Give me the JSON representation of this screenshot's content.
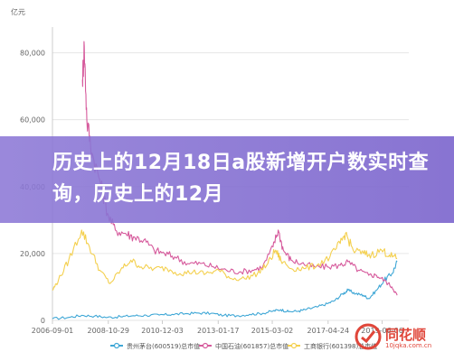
{
  "chart_data": {
    "type": "line",
    "y_unit": "亿元",
    "ylim": [
      0,
      85000
    ],
    "y_ticks": [
      0,
      20000,
      40000,
      60000,
      80000
    ],
    "y_tick_labels": [
      "0",
      "20,000",
      "40,000",
      "60,000",
      "80,000"
    ],
    "x_ticks": [
      2006.67,
      2008.83,
      2010.92,
      2013.08,
      2015.17,
      2017.33,
      2019.42
    ],
    "x_tick_labels": [
      "2006-09-01",
      "2008-10-29",
      "2010-12-03",
      "2013-01-17",
      "2015-03-02",
      "2017-04-24",
      "2019-06-06"
    ],
    "xlim": [
      2006.67,
      2020.1
    ],
    "grid": "horizontal",
    "legend_position": "bottom",
    "series": [
      {
        "name": "贵州茅台(600519)总市值",
        "color": "#3fa7d6",
        "points": [
          [
            2006.67,
            500
          ],
          [
            2007.3,
            900
          ],
          [
            2007.8,
            1500
          ],
          [
            2008.3,
            1300
          ],
          [
            2008.8,
            900
          ],
          [
            2009.3,
            1100
          ],
          [
            2009.8,
            1400
          ],
          [
            2010.3,
            1500
          ],
          [
            2010.8,
            1600
          ],
          [
            2011.3,
            1800
          ],
          [
            2011.8,
            2000
          ],
          [
            2012.3,
            2200
          ],
          [
            2012.8,
            2100
          ],
          [
            2013.3,
            1500
          ],
          [
            2013.8,
            1400
          ],
          [
            2014.3,
            1800
          ],
          [
            2014.8,
            2100
          ],
          [
            2015.2,
            2800
          ],
          [
            2015.5,
            3200
          ],
          [
            2015.8,
            2600
          ],
          [
            2016.2,
            2800
          ],
          [
            2016.5,
            3300
          ],
          [
            2016.9,
            4000
          ],
          [
            2017.3,
            5000
          ],
          [
            2017.6,
            6000
          ],
          [
            2017.9,
            8000
          ],
          [
            2018.1,
            9000
          ],
          [
            2018.4,
            8000
          ],
          [
            2018.7,
            7500
          ],
          [
            2018.9,
            6500
          ],
          [
            2019.2,
            9000
          ],
          [
            2019.5,
            12000
          ],
          [
            2019.8,
            14000
          ],
          [
            2020.0,
            17500
          ]
        ]
      },
      {
        "name": "中国石油(601857)总市值",
        "color": "#d65a9c",
        "points": [
          [
            2007.83,
            72000
          ],
          [
            2007.9,
            82000
          ],
          [
            2008.0,
            60000
          ],
          [
            2008.2,
            50000
          ],
          [
            2008.5,
            42000
          ],
          [
            2008.8,
            32000
          ],
          [
            2009.1,
            27000
          ],
          [
            2009.5,
            26000
          ],
          [
            2009.8,
            25000
          ],
          [
            2010.2,
            24000
          ],
          [
            2010.6,
            21000
          ],
          [
            2011.0,
            20000
          ],
          [
            2011.4,
            19000
          ],
          [
            2011.9,
            17000
          ],
          [
            2012.4,
            17000
          ],
          [
            2012.9,
            16000
          ],
          [
            2013.4,
            15000
          ],
          [
            2013.9,
            14500
          ],
          [
            2014.4,
            15000
          ],
          [
            2014.8,
            16000
          ],
          [
            2015.2,
            22000
          ],
          [
            2015.4,
            27000
          ],
          [
            2015.6,
            21000
          ],
          [
            2015.9,
            18000
          ],
          [
            2016.3,
            17000
          ],
          [
            2016.8,
            16000
          ],
          [
            2017.3,
            16000
          ],
          [
            2017.8,
            16500
          ],
          [
            2018.1,
            17500
          ],
          [
            2018.5,
            15000
          ],
          [
            2018.9,
            13500
          ],
          [
            2019.2,
            13500
          ],
          [
            2019.5,
            12000
          ],
          [
            2019.8,
            10000
          ],
          [
            2020.0,
            7500
          ]
        ]
      },
      {
        "name": "工商银行(601398)总市值",
        "color": "#f4d04f",
        "points": [
          [
            2006.67,
            9000
          ],
          [
            2006.9,
            12000
          ],
          [
            2007.3,
            18000
          ],
          [
            2007.8,
            27000
          ],
          [
            2008.1,
            22000
          ],
          [
            2008.5,
            15000
          ],
          [
            2008.9,
            11000
          ],
          [
            2009.3,
            15000
          ],
          [
            2009.7,
            18000
          ],
          [
            2010.1,
            16000
          ],
          [
            2010.6,
            15500
          ],
          [
            2011.1,
            15500
          ],
          [
            2011.6,
            14000
          ],
          [
            2012.1,
            14500
          ],
          [
            2012.6,
            14000
          ],
          [
            2013.1,
            15000
          ],
          [
            2013.6,
            12500
          ],
          [
            2014.1,
            12500
          ],
          [
            2014.6,
            14000
          ],
          [
            2015.0,
            17000
          ],
          [
            2015.3,
            21000
          ],
          [
            2015.5,
            18000
          ],
          [
            2015.9,
            15500
          ],
          [
            2016.4,
            15500
          ],
          [
            2016.9,
            16500
          ],
          [
            2017.4,
            19000
          ],
          [
            2017.8,
            23000
          ],
          [
            2018.0,
            26000
          ],
          [
            2018.3,
            21000
          ],
          [
            2018.7,
            20000
          ],
          [
            2019.0,
            19500
          ],
          [
            2019.4,
            21000
          ],
          [
            2019.7,
            19500
          ],
          [
            2020.0,
            18500
          ]
        ]
      }
    ]
  },
  "banner": {
    "text": "历史上的12月18日a股新增开户数实时查询，历史上的12月"
  },
  "watermark": {
    "brand": "同花顺",
    "url": "10jqka.com.cn"
  }
}
